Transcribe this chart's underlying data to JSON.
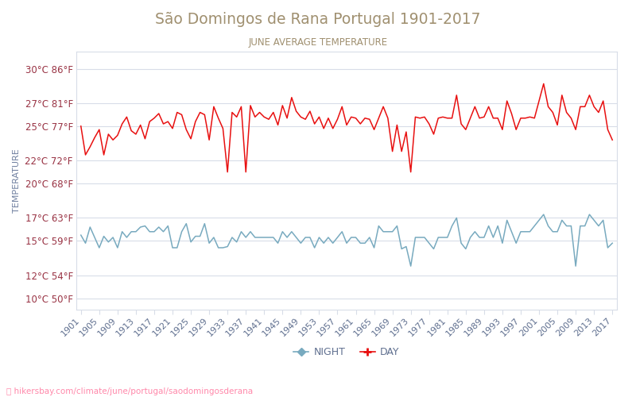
{
  "title": "São Domingos de Rana Portugal 1901-2017",
  "subtitle": "JUNE AVERAGE TEMPERATURE",
  "ylabel": "TEMPERATURE",
  "xlabel_url": "hikersbay.com/climate/june/portugal/saodomingosderana",
  "title_color": "#a09070",
  "subtitle_color": "#a09070",
  "ylabel_color": "#7080a0",
  "background_color": "#ffffff",
  "grid_color": "#d8dde8",
  "day_color": "#e81010",
  "night_color": "#78aabf",
  "yticks_celsius": [
    10,
    12,
    15,
    17,
    20,
    22,
    25,
    27,
    30
  ],
  "yticks_fahrenheit": [
    50,
    54,
    59,
    63,
    68,
    72,
    77,
    81,
    86
  ],
  "ylim": [
    9.0,
    31.5
  ],
  "xlim": [
    1900,
    2018
  ],
  "years": [
    1901,
    1902,
    1903,
    1904,
    1905,
    1906,
    1907,
    1908,
    1909,
    1910,
    1911,
    1912,
    1913,
    1914,
    1915,
    1916,
    1917,
    1918,
    1919,
    1920,
    1921,
    1922,
    1923,
    1924,
    1925,
    1926,
    1927,
    1928,
    1929,
    1930,
    1931,
    1932,
    1933,
    1934,
    1935,
    1936,
    1937,
    1938,
    1939,
    1940,
    1941,
    1942,
    1943,
    1944,
    1945,
    1946,
    1947,
    1948,
    1949,
    1950,
    1951,
    1952,
    1953,
    1954,
    1955,
    1956,
    1957,
    1958,
    1959,
    1960,
    1961,
    1962,
    1963,
    1964,
    1965,
    1966,
    1967,
    1968,
    1969,
    1970,
    1971,
    1972,
    1973,
    1974,
    1975,
    1976,
    1977,
    1978,
    1979,
    1980,
    1981,
    1982,
    1983,
    1984,
    1985,
    1986,
    1987,
    1988,
    1989,
    1990,
    1991,
    1992,
    1993,
    1994,
    1995,
    1996,
    1997,
    1998,
    1999,
    2000,
    2001,
    2002,
    2003,
    2004,
    2005,
    2006,
    2007,
    2008,
    2009,
    2010,
    2011,
    2012,
    2013,
    2014,
    2015,
    2016,
    2017
  ],
  "day_temps": [
    25.0,
    22.5,
    23.2,
    24.0,
    24.7,
    22.5,
    24.3,
    23.8,
    24.2,
    25.2,
    25.8,
    24.6,
    24.3,
    25.1,
    23.9,
    25.4,
    25.7,
    26.1,
    25.2,
    25.4,
    24.8,
    26.2,
    26.0,
    24.7,
    23.9,
    25.4,
    26.2,
    26.0,
    23.8,
    26.7,
    25.7,
    24.8,
    21.0,
    26.2,
    25.8,
    26.7,
    21.0,
    26.8,
    25.8,
    26.2,
    25.8,
    25.6,
    26.2,
    25.1,
    26.8,
    25.7,
    27.5,
    26.3,
    25.8,
    25.6,
    26.3,
    25.2,
    25.8,
    24.8,
    25.7,
    24.8,
    25.6,
    26.7,
    25.1,
    25.8,
    25.7,
    25.2,
    25.7,
    25.6,
    24.7,
    25.7,
    26.7,
    25.7,
    22.8,
    25.1,
    22.8,
    24.5,
    21.0,
    25.8,
    25.7,
    25.8,
    25.2,
    24.3,
    25.7,
    25.8,
    25.7,
    25.7,
    27.7,
    25.2,
    24.7,
    25.7,
    26.7,
    25.7,
    25.8,
    26.7,
    25.7,
    25.7,
    24.7,
    27.2,
    26.1,
    24.7,
    25.7,
    25.7,
    25.8,
    25.7,
    27.2,
    28.7,
    26.7,
    26.2,
    25.1,
    27.7,
    26.2,
    25.7,
    24.7,
    26.7,
    26.7,
    27.7,
    26.7,
    26.2,
    27.2,
    24.7,
    23.8
  ],
  "night_temps": [
    15.5,
    14.8,
    16.2,
    15.3,
    14.4,
    15.4,
    14.9,
    15.3,
    14.4,
    15.8,
    15.3,
    15.8,
    15.8,
    16.2,
    16.3,
    15.8,
    15.8,
    16.2,
    15.8,
    16.3,
    14.4,
    14.4,
    15.8,
    16.5,
    14.9,
    15.4,
    15.4,
    16.5,
    14.8,
    15.3,
    14.4,
    14.4,
    14.5,
    15.3,
    14.9,
    15.8,
    15.3,
    15.8,
    15.3,
    15.3,
    15.3,
    15.3,
    15.3,
    14.8,
    15.8,
    15.3,
    15.8,
    15.3,
    14.8,
    15.3,
    15.3,
    14.4,
    15.3,
    14.8,
    15.3,
    14.8,
    15.3,
    15.8,
    14.8,
    15.3,
    15.3,
    14.8,
    14.8,
    15.3,
    14.4,
    16.3,
    15.8,
    15.8,
    15.8,
    16.3,
    14.3,
    14.5,
    12.8,
    15.3,
    15.3,
    15.3,
    14.8,
    14.3,
    15.3,
    15.3,
    15.3,
    16.3,
    17.0,
    14.8,
    14.3,
    15.3,
    15.8,
    15.3,
    15.3,
    16.3,
    15.3,
    16.3,
    14.8,
    16.8,
    15.8,
    14.8,
    15.8,
    15.8,
    15.8,
    16.3,
    16.8,
    17.3,
    16.3,
    15.8,
    15.8,
    16.8,
    16.3,
    16.3,
    12.8,
    16.3,
    16.3,
    17.3,
    16.8,
    16.3,
    16.8,
    14.4,
    14.8
  ]
}
